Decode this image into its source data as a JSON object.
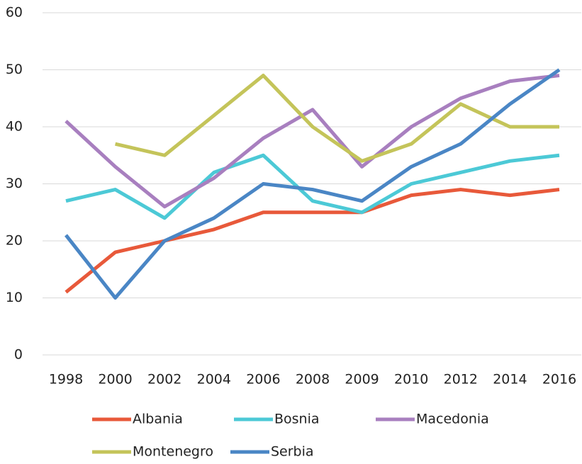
{
  "chart_data": {
    "type": "line",
    "categories": [
      "1998",
      "2000",
      "2002",
      "2004",
      "2006",
      "2008",
      "2009",
      "2010",
      "2012",
      "2014",
      "2016"
    ],
    "series": [
      {
        "name": "Albania",
        "color": "#e8593a",
        "values": [
          11,
          18,
          20,
          22,
          25,
          25,
          25,
          28,
          29,
          28,
          29
        ]
      },
      {
        "name": "Bosnia",
        "color": "#4cc9d6",
        "values": [
          27,
          29,
          24,
          32,
          35,
          27,
          25,
          30,
          32,
          34,
          35
        ]
      },
      {
        "name": "Macedonia",
        "color": "#a87fbf",
        "values": [
          41,
          33,
          26,
          31,
          38,
          43,
          33,
          40,
          45,
          48,
          49
        ]
      },
      {
        "name": "Montenegro",
        "color": "#c4c45a",
        "values": [
          null,
          37,
          35,
          42,
          49,
          40,
          34,
          37,
          44,
          40,
          40
        ]
      },
      {
        "name": "Serbia",
        "color": "#4a86c5",
        "values": [
          21,
          10,
          20,
          24,
          30,
          29,
          27,
          33,
          37,
          44,
          50
        ]
      }
    ],
    "ylim": [
      0,
      60
    ],
    "yticks": [
      0,
      10,
      20,
      30,
      40,
      50,
      60
    ],
    "grid": true,
    "legend": "bottom"
  }
}
